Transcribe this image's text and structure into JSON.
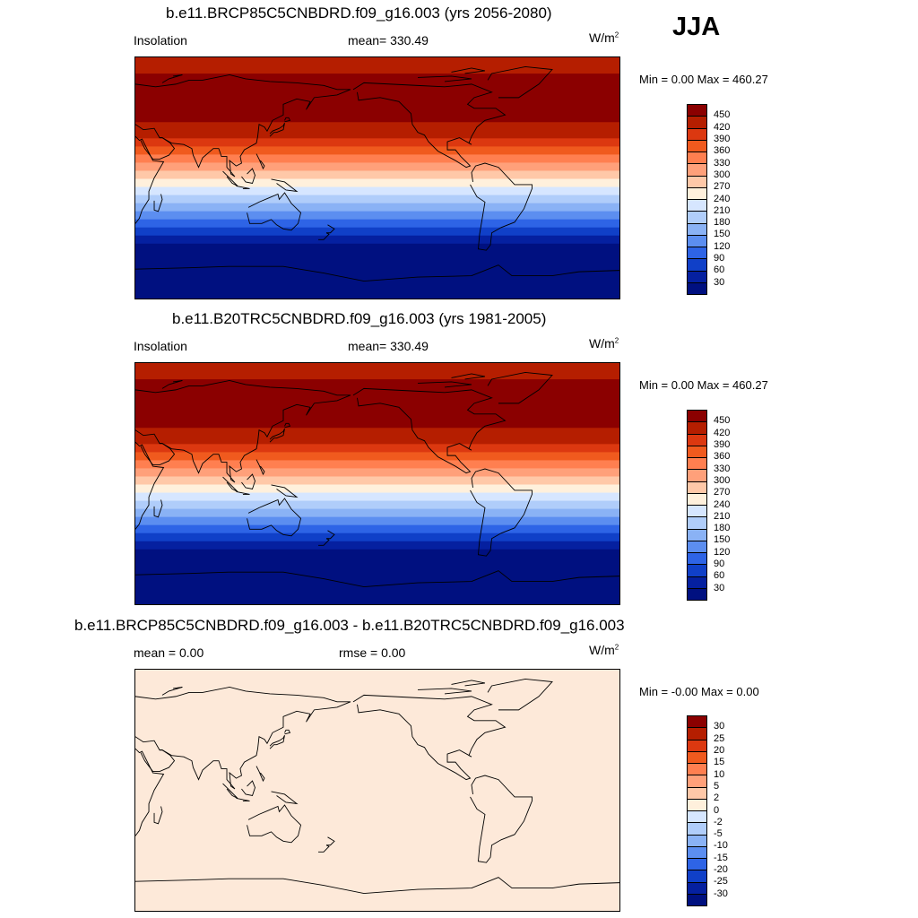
{
  "season": "JJA",
  "panels": [
    {
      "title": "b.e11.BRCP85C5CNBDRD.f09_g16.003 (yrs 2056-2080)",
      "left_label": "Insolation",
      "center_label": "mean= 330.49",
      "units": "W/m",
      "units_sup": "2",
      "minmax": "Min =   0.00 Max = 460.27",
      "colorbar_labels": [
        "450",
        "420",
        "390",
        "360",
        "330",
        "300",
        "270",
        "240",
        "210",
        "180",
        "150",
        "120",
        "90",
        "60",
        "30"
      ],
      "colorbar_colors": [
        "#8b0000",
        "#b51e00",
        "#dc3810",
        "#f05a1e",
        "#ff7f50",
        "#ffa07a",
        "#ffc8a8",
        "#fff0dc",
        "#d6e6ff",
        "#b0cdfa",
        "#8ab2f5",
        "#5c8ef0",
        "#2e64e6",
        "#1040c8",
        "#0520a0",
        "#001080"
      ]
    },
    {
      "title": "b.e11.B20TRC5CNBDRD.f09_g16.003 (yrs 1981-2005)",
      "left_label": "Insolation",
      "center_label": "mean= 330.49",
      "units": "W/m",
      "units_sup": "2",
      "minmax": "Min =   0.00 Max = 460.27",
      "colorbar_labels": [
        "450",
        "420",
        "390",
        "360",
        "330",
        "300",
        "270",
        "240",
        "210",
        "180",
        "150",
        "120",
        "90",
        "60",
        "30"
      ],
      "colorbar_colors": [
        "#8b0000",
        "#b51e00",
        "#dc3810",
        "#f05a1e",
        "#ff7f50",
        "#ffa07a",
        "#ffc8a8",
        "#fff0dc",
        "#d6e6ff",
        "#b0cdfa",
        "#8ab2f5",
        "#5c8ef0",
        "#2e64e6",
        "#1040c8",
        "#0520a0",
        "#001080"
      ]
    },
    {
      "title": "b.e11.BRCP85C5CNBDRD.f09_g16.003 - b.e11.B20TRC5CNBDRD.f09_g16.003",
      "left_label": "mean =   0.00",
      "center_label": "rmse =   0.00",
      "units": "W/m",
      "units_sup": "2",
      "minmax": "Min =  -0.00 Max =   0.00",
      "colorbar_labels": [
        "30",
        "25",
        "20",
        "15",
        "10",
        "5",
        "2",
        "0",
        "-2",
        "-5",
        "-10",
        "-15",
        "-20",
        "-25",
        "-30"
      ],
      "colorbar_colors": [
        "#8b0000",
        "#b51e00",
        "#dc3810",
        "#f05a1e",
        "#ff7f50",
        "#ffa07a",
        "#ffc8a8",
        "#fff0dc",
        "#d6e6ff",
        "#b0cdfa",
        "#8ab2f5",
        "#5c8ef0",
        "#2e64e6",
        "#1040c8",
        "#0520a0",
        "#001080"
      ],
      "field_color": "#fde9d9"
    }
  ],
  "insolation_lat_bands": {
    "lat_edges": [
      90,
      78,
      66,
      42,
      30,
      24,
      18,
      12,
      6,
      0,
      -6,
      -12,
      -18,
      -24,
      -30,
      -36,
      -42,
      -48,
      -54,
      -60,
      -90
    ],
    "colors": [
      "#b51e00",
      "#8b0000",
      "#8b0000",
      "#b51e00",
      "#dc3810",
      "#f05a1e",
      "#ff7f50",
      "#ffa07a",
      "#ffc8a8",
      "#fff0dc",
      "#d6e6ff",
      "#b0cdfa",
      "#8ab2f5",
      "#5c8ef0",
      "#2e64e6",
      "#1040c8",
      "#0520a0",
      "#001080",
      "#001080",
      "#001080"
    ]
  }
}
